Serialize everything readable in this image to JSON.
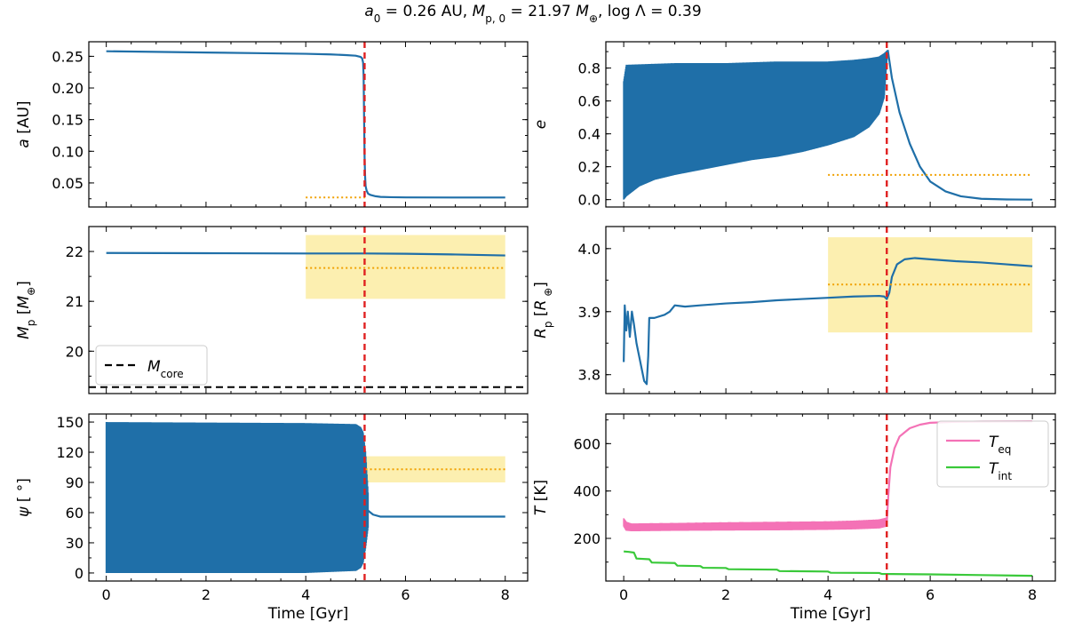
{
  "chart_data": [
    {
      "type": "line",
      "panel": "a",
      "title": "a₀ = 0.26 AU, Mp,0 = 21.97 M⊕, log Λ = 0.39",
      "xlabel": "",
      "ylabel": "a [AU]",
      "xlim": [
        -0.35,
        8.45
      ],
      "ylim": [
        0.012,
        0.273
      ],
      "xticks": [
        0,
        2,
        4,
        6,
        8
      ],
      "yticks": [
        0.05,
        0.1,
        0.15,
        0.2,
        0.25
      ],
      "ytick_labels": [
        "0.05",
        "0.10",
        "0.15",
        "0.20",
        "0.25"
      ],
      "series": [
        {
          "name": "a",
          "color": "#1f6fa8",
          "style": "line",
          "x": [
            0,
            1,
            2,
            3,
            4,
            4.5,
            4.8,
            5.0,
            5.1,
            5.13,
            5.15,
            5.16,
            5.17,
            5.18,
            5.19,
            5.2,
            5.22,
            5.25,
            5.3,
            5.4,
            5.5,
            5.7,
            6,
            7,
            8
          ],
          "y": [
            0.258,
            0.257,
            0.256,
            0.255,
            0.254,
            0.253,
            0.252,
            0.251,
            0.249,
            0.247,
            0.24,
            0.22,
            0.15,
            0.09,
            0.06,
            0.045,
            0.038,
            0.033,
            0.031,
            0.029,
            0.028,
            0.0275,
            0.0272,
            0.027,
            0.027
          ]
        }
      ],
      "vline": {
        "x": 5.18,
        "color": "#e02020"
      },
      "observed": {
        "value": 0.027,
        "x_range": [
          4,
          5.2
        ],
        "color": "#f0a000"
      }
    },
    {
      "type": "line",
      "panel": "e",
      "xlabel": "",
      "ylabel": "e",
      "xlim": [
        -0.35,
        8.45
      ],
      "ylim": [
        -0.045,
        0.96
      ],
      "xticks": [
        0,
        2,
        4,
        6,
        8
      ],
      "yticks": [
        0.0,
        0.2,
        0.4,
        0.6,
        0.8
      ],
      "ytick_labels": [
        "0.0",
        "0.2",
        "0.4",
        "0.6",
        "0.8"
      ],
      "series": [
        {
          "name": "e oscillation upper",
          "color": "#1f6fa8",
          "style": "band_upper",
          "x": [
            0,
            0.05,
            1,
            2,
            3,
            4,
            4.5,
            4.8,
            5.0,
            5.1,
            5.17
          ],
          "y": [
            0.72,
            0.82,
            0.83,
            0.83,
            0.84,
            0.84,
            0.85,
            0.86,
            0.87,
            0.89,
            0.91
          ]
        },
        {
          "name": "e oscillation lower",
          "color": "#1f6fa8",
          "style": "band_lower",
          "x": [
            0,
            0.05,
            0.3,
            0.6,
            1,
            1.5,
            2,
            2.5,
            3,
            3.5,
            4,
            4.5,
            4.8,
            5.0,
            5.1,
            5.17
          ],
          "y": [
            0.0,
            0.02,
            0.08,
            0.12,
            0.15,
            0.18,
            0.21,
            0.24,
            0.26,
            0.29,
            0.33,
            0.38,
            0.44,
            0.52,
            0.62,
            0.91
          ]
        },
        {
          "name": "e decay",
          "color": "#1f6fa8",
          "style": "line",
          "x": [
            5.17,
            5.25,
            5.4,
            5.6,
            5.8,
            6.0,
            6.3,
            6.6,
            7,
            7.5,
            8
          ],
          "y": [
            0.91,
            0.74,
            0.53,
            0.34,
            0.2,
            0.11,
            0.05,
            0.02,
            0.005,
            0.001,
            0.0
          ]
        }
      ],
      "vline": {
        "x": 5.15,
        "color": "#e02020"
      },
      "observed": {
        "value": 0.15,
        "x_range": [
          4,
          8
        ],
        "color": "#f0a000"
      }
    },
    {
      "type": "line",
      "panel": "Mp",
      "xlabel": "",
      "ylabel": "Mp [M⊕]",
      "xlim": [
        -0.35,
        8.45
      ],
      "ylim": [
        19.15,
        22.5
      ],
      "xticks": [
        0,
        2,
        4,
        6,
        8
      ],
      "yticks": [
        20,
        21,
        22
      ],
      "ytick_labels": [
        "20",
        "21",
        "22"
      ],
      "series": [
        {
          "name": "Mp",
          "color": "#1f6fa8",
          "style": "line",
          "x": [
            0,
            2,
            4,
            5,
            5.2,
            6,
            7,
            8
          ],
          "y": [
            21.97,
            21.965,
            21.96,
            21.96,
            21.96,
            21.955,
            21.94,
            21.92
          ]
        }
      ],
      "vline": {
        "x": 5.18,
        "color": "#e02020"
      },
      "observed": {
        "value": 21.67,
        "band": [
          21.05,
          22.33
        ],
        "x_range": [
          4,
          8
        ],
        "color": "#f0a000",
        "band_color": "#fcefb0"
      },
      "hline": {
        "value": 19.28,
        "color": "#000000",
        "legend": "M_core"
      },
      "legend": {
        "position": "lower-left",
        "entries": [
          {
            "label": "M",
            "sub": "core",
            "style": "dashed",
            "color": "#000000"
          }
        ]
      }
    },
    {
      "type": "line",
      "panel": "Rp",
      "xlabel": "",
      "ylabel": "Rp [R⊕]",
      "xlim": [
        -0.35,
        8.45
      ],
      "ylim": [
        3.77,
        4.035
      ],
      "xticks": [
        0,
        2,
        4,
        6,
        8
      ],
      "yticks": [
        3.8,
        3.9,
        4.0
      ],
      "ytick_labels": [
        "3.8",
        "3.9",
        "4.0"
      ],
      "series": [
        {
          "name": "Rp",
          "color": "#1f6fa8",
          "style": "line",
          "x": [
            0,
            0.02,
            0.05,
            0.08,
            0.12,
            0.16,
            0.2,
            0.25,
            0.3,
            0.35,
            0.4,
            0.45,
            0.48,
            0.5,
            0.6,
            0.8,
            0.9,
            1.0,
            1.2,
            1.5,
            2,
            2.5,
            3,
            3.5,
            4,
            4.5,
            5,
            5.1,
            5.15,
            5.2,
            5.25,
            5.35,
            5.5,
            5.7,
            6,
            6.5,
            7,
            7.5,
            8
          ],
          "y": [
            3.82,
            3.91,
            3.87,
            3.9,
            3.86,
            3.9,
            3.88,
            3.85,
            3.83,
            3.81,
            3.79,
            3.785,
            3.83,
            3.89,
            3.89,
            3.895,
            3.9,
            3.91,
            3.908,
            3.91,
            3.913,
            3.915,
            3.918,
            3.92,
            3.922,
            3.924,
            3.925,
            3.924,
            3.92,
            3.93,
            3.955,
            3.975,
            3.983,
            3.985,
            3.983,
            3.98,
            3.978,
            3.975,
            3.972
          ]
        }
      ],
      "vline": {
        "x": 5.15,
        "color": "#e02020"
      },
      "observed": {
        "value": 3.943,
        "band": [
          3.867,
          4.018
        ],
        "x_range": [
          4,
          8
        ],
        "color": "#f0a000",
        "band_color": "#fcefb0"
      }
    },
    {
      "type": "line",
      "panel": "psi",
      "xlabel": "Time [Gyr]",
      "ylabel": "ψ [°]",
      "xlim": [
        -0.35,
        8.45
      ],
      "ylim": [
        -8,
        158
      ],
      "xticks": [
        0,
        2,
        4,
        6,
        8
      ],
      "xtick_labels": [
        "0",
        "2",
        "4",
        "6",
        "8"
      ],
      "yticks": [
        0,
        30,
        60,
        90,
        120,
        150
      ],
      "ytick_labels": [
        "0",
        "30",
        "60",
        "90",
        "120",
        "150"
      ],
      "series": [
        {
          "name": "psi oscillation upper",
          "color": "#1f6fa8",
          "style": "band_upper",
          "x": [
            0,
            4,
            5,
            5.1,
            5.15,
            5.2,
            5.25
          ],
          "y": [
            150,
            149,
            148,
            145,
            140,
            120,
            80
          ]
        },
        {
          "name": "psi oscillation lower",
          "color": "#1f6fa8",
          "style": "band_lower",
          "x": [
            0,
            4,
            5,
            5.1,
            5.15,
            5.2,
            5.25
          ],
          "y": [
            0,
            0,
            2,
            5,
            10,
            25,
            45
          ]
        },
        {
          "name": "psi settled",
          "color": "#1f6fa8",
          "style": "line",
          "x": [
            5.25,
            5.35,
            5.5,
            6,
            7,
            8
          ],
          "y": [
            62,
            58,
            56,
            56,
            56,
            56
          ]
        }
      ],
      "vline": {
        "x": 5.18,
        "color": "#e02020"
      },
      "observed": {
        "value": 103,
        "band": [
          90,
          116
        ],
        "x_range": [
          5.2,
          8
        ],
        "color": "#f0a000",
        "band_color": "#fcefb0"
      }
    },
    {
      "type": "line",
      "panel": "T",
      "xlabel": "Time [Gyr]",
      "ylabel": "T [K]",
      "xlim": [
        -0.35,
        8.45
      ],
      "ylim": [
        20,
        725
      ],
      "xticks": [
        0,
        2,
        4,
        6,
        8
      ],
      "xtick_labels": [
        "0",
        "2",
        "4",
        "6",
        "8"
      ],
      "yticks": [
        200,
        400,
        600
      ],
      "ytick_labels": [
        "200",
        "400",
        "600"
      ],
      "series": [
        {
          "name": "T_eq upper",
          "color": "#f472b6",
          "style": "band_upper",
          "x": [
            0,
            0.05,
            0.15,
            1,
            2,
            3,
            4,
            4.5,
            5,
            5.15
          ],
          "y": [
            285,
            270,
            263,
            265,
            268,
            270,
            272,
            275,
            280,
            288
          ]
        },
        {
          "name": "T_eq lower",
          "color": "#f472b6",
          "style": "band_lower",
          "x": [
            0,
            0.05,
            0.15,
            1,
            2,
            3,
            4,
            4.5,
            5,
            5.15
          ],
          "y": [
            250,
            232,
            230,
            232,
            233,
            234,
            236,
            238,
            242,
            250
          ]
        },
        {
          "name": "T_eq",
          "color": "#f472b6",
          "style": "line",
          "x": [
            5.15,
            5.18,
            5.22,
            5.3,
            5.4,
            5.6,
            5.8,
            6,
            6.5,
            7,
            8
          ],
          "y": [
            265,
            380,
            500,
            580,
            630,
            665,
            680,
            688,
            692,
            693,
            694
          ]
        },
        {
          "name": "T_int",
          "color": "#3ac93a",
          "style": "line",
          "x": [
            0,
            0.1,
            0.2,
            0.25,
            0.5,
            0.55,
            1,
            1.05,
            1.5,
            1.55,
            2,
            2.05,
            3,
            3.05,
            4,
            4.05,
            5,
            5.05,
            6,
            7,
            8
          ],
          "y": [
            145,
            143,
            140,
            115,
            112,
            98,
            96,
            85,
            83,
            76,
            75,
            70,
            68,
            62,
            60,
            55,
            54,
            50,
            48,
            45,
            42
          ]
        }
      ],
      "vline": {
        "x": 5.15,
        "color": "#e02020"
      },
      "legend": {
        "position": "top-right",
        "entries": [
          {
            "label": "T",
            "sub": "eq",
            "color": "#f472b6"
          },
          {
            "label": "T",
            "sub": "int",
            "color": "#3ac93a"
          }
        ]
      }
    }
  ],
  "figure": {
    "title_parts": {
      "a_sym": "a",
      "a_sub": "0",
      "a_val": " = 0.26 AU, ",
      "m_sym": "M",
      "m_sub": "p, 0",
      "m_val": " = 21.97 ",
      "m_unit_sym": "M",
      "m_unit_sub": "⊕",
      "log_text": ", log Λ = 0.39"
    }
  }
}
